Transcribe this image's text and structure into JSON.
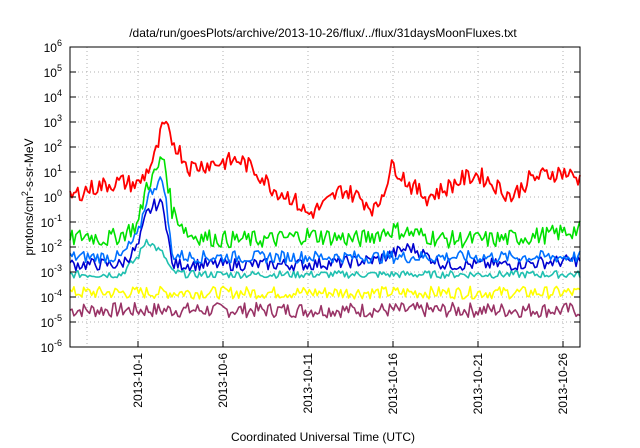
{
  "chart_data": {
    "type": "line",
    "title": "/data/run/goesPlots/archive/2013-10-26/flux/../flux/31daysMoonFluxes.txt",
    "xlabel": "Coordinated Universal Time (UTC)",
    "ylabel": "protons/cm²-s-sr-MeV",
    "y_scale": "log",
    "ylim": [
      1e-06,
      1000000.0
    ],
    "xlim": [
      "2013-09-27",
      "2013-10-27"
    ],
    "grid": true,
    "legend": "none",
    "y_ticks": [
      {
        "value": 1e-06,
        "base": "10",
        "exp": "-6"
      },
      {
        "value": 1e-05,
        "base": "10",
        "exp": "-5"
      },
      {
        "value": 0.0001,
        "base": "10",
        "exp": "-4"
      },
      {
        "value": 0.001,
        "base": "10",
        "exp": "-3"
      },
      {
        "value": 0.01,
        "base": "10",
        "exp": "-2"
      },
      {
        "value": 0.1,
        "base": "10",
        "exp": "-1"
      },
      {
        "value": 1,
        "base": "10",
        "exp": "0"
      },
      {
        "value": 10.0,
        "base": "10",
        "exp": "1"
      },
      {
        "value": 100.0,
        "base": "10",
        "exp": "2"
      },
      {
        "value": 1000.0,
        "base": "10",
        "exp": "3"
      },
      {
        "value": 10000.0,
        "base": "10",
        "exp": "4"
      },
      {
        "value": 100000.0,
        "base": "10",
        "exp": "5"
      },
      {
        "value": 1000000.0,
        "base": "10",
        "exp": "6"
      }
    ],
    "x_ticks": [
      "2013-10-1",
      "2013-10-6",
      "2013-10-11",
      "2013-10-16",
      "2013-10-21",
      "2013-10-26"
    ],
    "x_grid": [
      "2013-09-28",
      "2013-10-01",
      "2013-10-06",
      "2013-10-11",
      "2013-10-16",
      "2013-10-21",
      "2013-10-26"
    ],
    "series": [
      {
        "color": "#ff0000",
        "x": [
          "2013-09-27",
          "2013-09-28",
          "2013-09-29",
          "2013-09-30",
          "2013-10-01",
          "2013-10-01T12:00",
          "2013-10-02",
          "2013-10-02T12:00",
          "2013-10-03",
          "2013-10-03T12:00",
          "2013-10-04",
          "2013-10-05",
          "2013-10-06",
          "2013-10-07",
          "2013-10-08",
          "2013-10-09",
          "2013-10-10",
          "2013-10-11",
          "2013-10-12",
          "2013-10-13",
          "2013-10-14",
          "2013-10-15",
          "2013-10-16",
          "2013-10-17",
          "2013-10-18",
          "2013-10-19",
          "2013-10-20",
          "2013-10-21",
          "2013-10-22",
          "2013-10-23",
          "2013-10-24",
          "2013-10-25",
          "2013-10-26",
          "2013-10-27"
        ],
        "y": [
          1.0,
          2.0,
          3.0,
          4.0,
          3.0,
          10,
          40,
          800,
          200,
          60,
          15,
          20,
          25,
          30,
          10,
          2,
          1.0,
          0.2,
          0.5,
          2,
          1.0,
          0.3,
          20,
          3,
          1.0,
          2,
          5,
          8,
          3,
          1.0,
          5,
          8,
          10,
          5
        ]
      },
      {
        "color": "#00e000",
        "x": [
          "2013-09-27",
          "2013-09-28",
          "2013-09-29",
          "2013-09-30",
          "2013-10-01",
          "2013-10-01T12:00",
          "2013-10-02",
          "2013-10-02T12:00",
          "2013-10-03",
          "2013-10-03T12:00",
          "2013-10-04",
          "2013-10-06",
          "2013-10-09",
          "2013-10-11",
          "2013-10-14",
          "2013-10-16",
          "2013-10-19",
          "2013-10-22",
          "2013-10-25",
          "2013-10-27"
        ],
        "y": [
          0.02,
          0.03,
          0.02,
          0.03,
          0.08,
          3,
          8,
          50,
          0.3,
          0.1,
          0.03,
          0.02,
          0.02,
          0.03,
          0.02,
          0.05,
          0.02,
          0.02,
          0.03,
          0.05
        ]
      },
      {
        "color": "#0070ff",
        "x": [
          "2013-09-27",
          "2013-09-30",
          "2013-10-01",
          "2013-10-01T12:00",
          "2013-10-02",
          "2013-10-02T12:00",
          "2013-10-03",
          "2013-10-04",
          "2013-10-07",
          "2013-10-11",
          "2013-10-15",
          "2013-10-19",
          "2013-10-23",
          "2013-10-27"
        ],
        "y": [
          0.004,
          0.004,
          0.03,
          0.8,
          3,
          5,
          0.005,
          0.004,
          0.004,
          0.004,
          0.004,
          0.004,
          0.004,
          0.004
        ]
      },
      {
        "color": "#0000d0",
        "x": [
          "2013-09-27",
          "2013-09-30",
          "2013-10-01",
          "2013-10-01T12:00",
          "2013-10-02",
          "2013-10-02T12:00",
          "2013-10-03",
          "2013-10-04",
          "2013-10-07",
          "2013-10-11",
          "2013-10-15",
          "2013-10-17",
          "2013-10-19",
          "2013-10-23",
          "2013-10-27"
        ],
        "y": [
          0.002,
          0.002,
          0.01,
          0.2,
          0.5,
          0.5,
          0.002,
          0.002,
          0.002,
          0.002,
          0.003,
          0.01,
          0.002,
          0.002,
          0.003
        ]
      },
      {
        "color": "#20c0b0",
        "x": [
          "2013-09-27",
          "2013-09-30",
          "2013-10-01",
          "2013-10-01T12:00",
          "2013-10-02",
          "2013-10-02T12:00",
          "2013-10-03",
          "2013-10-04",
          "2013-10-07",
          "2013-10-11",
          "2013-10-15",
          "2013-10-19",
          "2013-10-23",
          "2013-10-27"
        ],
        "y": [
          0.0008,
          0.0008,
          0.004,
          0.02,
          0.01,
          0.005,
          0.001,
          0.0008,
          0.0008,
          0.0008,
          0.0008,
          0.0008,
          0.0008,
          0.0008
        ]
      },
      {
        "color": "#ffff00",
        "x": [
          "2013-09-27",
          "2013-10-04",
          "2013-10-11",
          "2013-10-18",
          "2013-10-27"
        ],
        "y": [
          0.00015,
          0.00015,
          0.00015,
          0.00015,
          0.00015
        ]
      },
      {
        "color": "#993366",
        "x": [
          "2013-09-27",
          "2013-10-04",
          "2013-10-11",
          "2013-10-18",
          "2013-10-27"
        ],
        "y": [
          3e-05,
          3e-05,
          3e-05,
          3e-05,
          3e-05
        ]
      }
    ]
  }
}
